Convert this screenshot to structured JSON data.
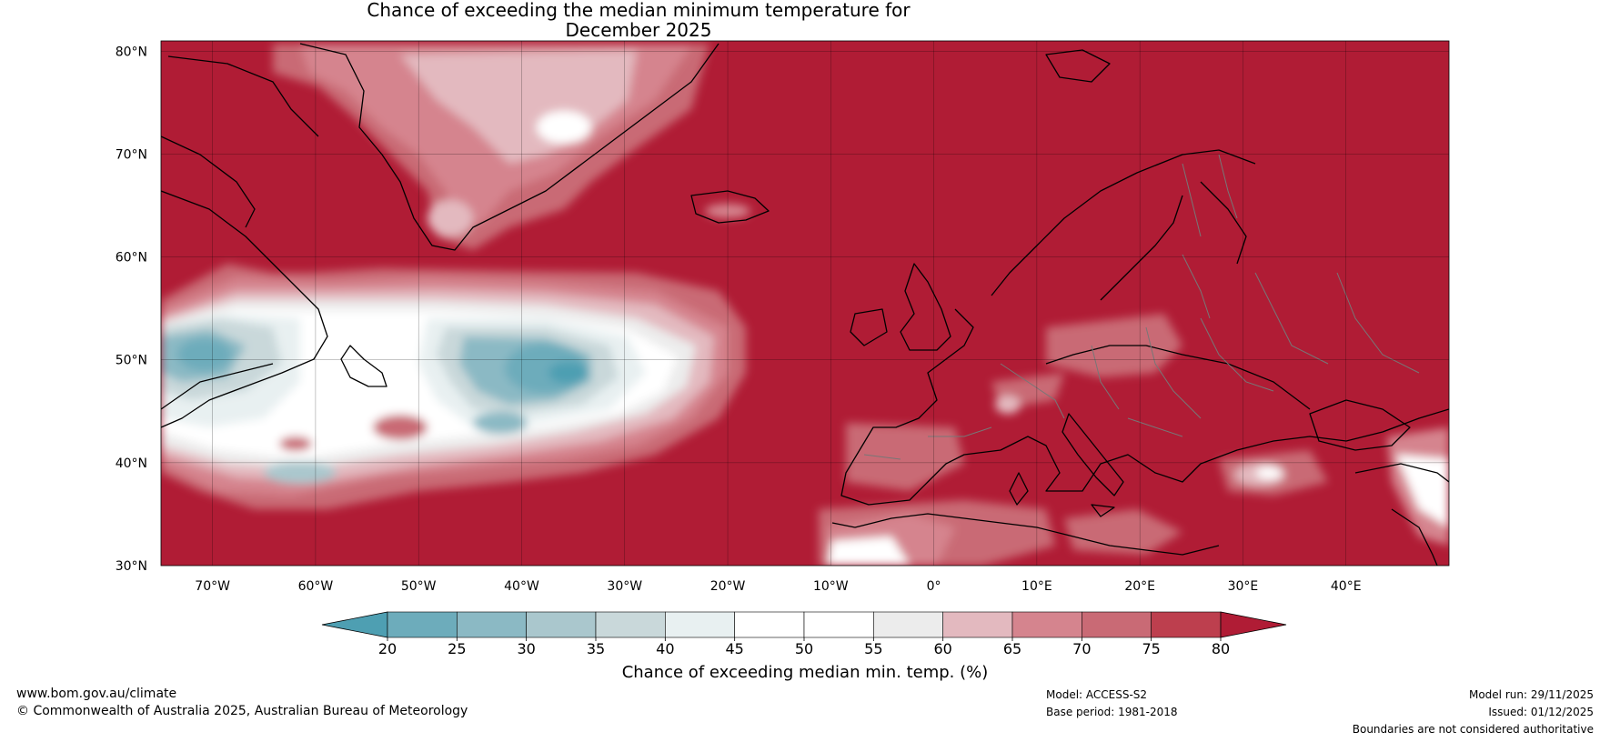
{
  "title": {
    "line1": "Chance of exceeding the median minimum temperature for",
    "line2": "December 2025"
  },
  "map": {
    "lat_labels": [
      "80°N",
      "70°N",
      "60°N",
      "50°N",
      "40°N",
      "30°N"
    ],
    "lon_labels": [
      "70°W",
      "60°W",
      "50°W",
      "40°W",
      "30°W",
      "20°W",
      "10°W",
      "0°",
      "10°E",
      "20°E",
      "30°E",
      "40°E"
    ],
    "lat_range": [
      30,
      81
    ],
    "lon_range": [
      -75,
      50
    ]
  },
  "colorbar": {
    "ticks": [
      "20",
      "25",
      "30",
      "35",
      "40",
      "45",
      "50",
      "55",
      "60",
      "65",
      "70",
      "75",
      "80"
    ],
    "colors": [
      "#4e9fb2",
      "#6dacbb",
      "#8bb9c4",
      "#aac7cd",
      "#c9d8da",
      "#e8f0f1",
      "#ffffff",
      "#ffffff",
      "#ececec",
      "#e3b9bf",
      "#d5848e",
      "#c96a75",
      "#bd3f4e",
      "#b01c35"
    ],
    "label": "Chance of exceeding median min. temp. (%)"
  },
  "footer": {
    "url": "www.bom.gov.au/climate",
    "copyright": "© Commonwealth of Australia 2025, Australian Bureau of Meteorology",
    "model": "Model: ACCESS-S2",
    "base_period": "Base period: 1981-2018",
    "model_run": "Model run: 29/11/2025",
    "issued": "Issued: 01/12/2025",
    "disclaimer": "Boundaries are not considered authoritative"
  }
}
